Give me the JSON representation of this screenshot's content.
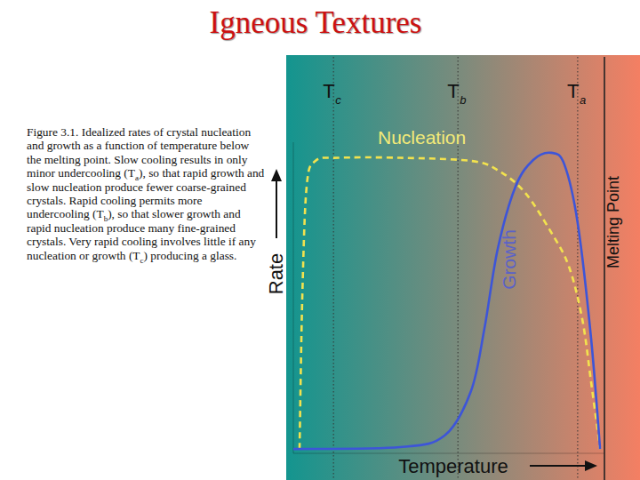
{
  "chart_data": {
    "type": "line",
    "title": "Igneous Textures",
    "caption": [
      {
        "text": "Figure 3.1.  Idealized rates of crystal nucleation and growth as a function of temperature below the melting point. Slow cooling results in only minor undercooling (T"
      },
      {
        "text": "a",
        "subscript": true
      },
      {
        "text": "), so that rapid growth and slow nucleation produce fewer coarse-grained crystals. Rapid cooling permits more undercooling (T"
      },
      {
        "text": "b",
        "subscript": true
      },
      {
        "text": "), so that slower growth and rapid nucleation produce many fine-grained crystals. Very rapid cooling involves little if any nucleation or growth  (T"
      },
      {
        "text": "c",
        "subscript": true
      },
      {
        "text": ") producing a glass."
      }
    ],
    "x_label": "Temperature",
    "y_label": "Rate",
    "xlim": [
      0,
      100
    ],
    "ylim": [
      0,
      100
    ],
    "tick_labels": false,
    "grid": false,
    "series": [
      {
        "name": "Nucleation",
        "color": "#f2e24e",
        "line_style": "dashed",
        "x": [
          2,
          2.9,
          4.3,
          7.1,
          14.3,
          34.3,
          57.1,
          65.7,
          74.3,
          82.9,
          88.6,
          92.9,
          95.7,
          98.6
        ],
        "values": [
          1.4,
          51,
          86,
          94,
          95,
          95,
          94,
          91,
          84,
          71,
          60,
          43,
          23,
          1.4
        ]
      },
      {
        "name": "Growth",
        "color": "#3d55d8",
        "line_style": "solid",
        "x": [
          0,
          34.3,
          48.6,
          57.1,
          61.4,
          65.7,
          71.4,
          77.1,
          82.9,
          87.1,
          91.4,
          95.7,
          98.6
        ],
        "values": [
          1.4,
          2,
          5.7,
          20,
          40,
          65.7,
          85.7,
          94.3,
          96.6,
          92.9,
          74,
          37,
          1.4
        ]
      }
    ],
    "annotations": [
      {
        "text": "T",
        "subscript": "c",
        "x": 12.9
      },
      {
        "text": "T",
        "subscript": "b",
        "x": 52.9
      },
      {
        "text": "T",
        "subscript": "a",
        "x": 91.4
      },
      {
        "text": "Melting Point",
        "x": 100
      }
    ]
  }
}
